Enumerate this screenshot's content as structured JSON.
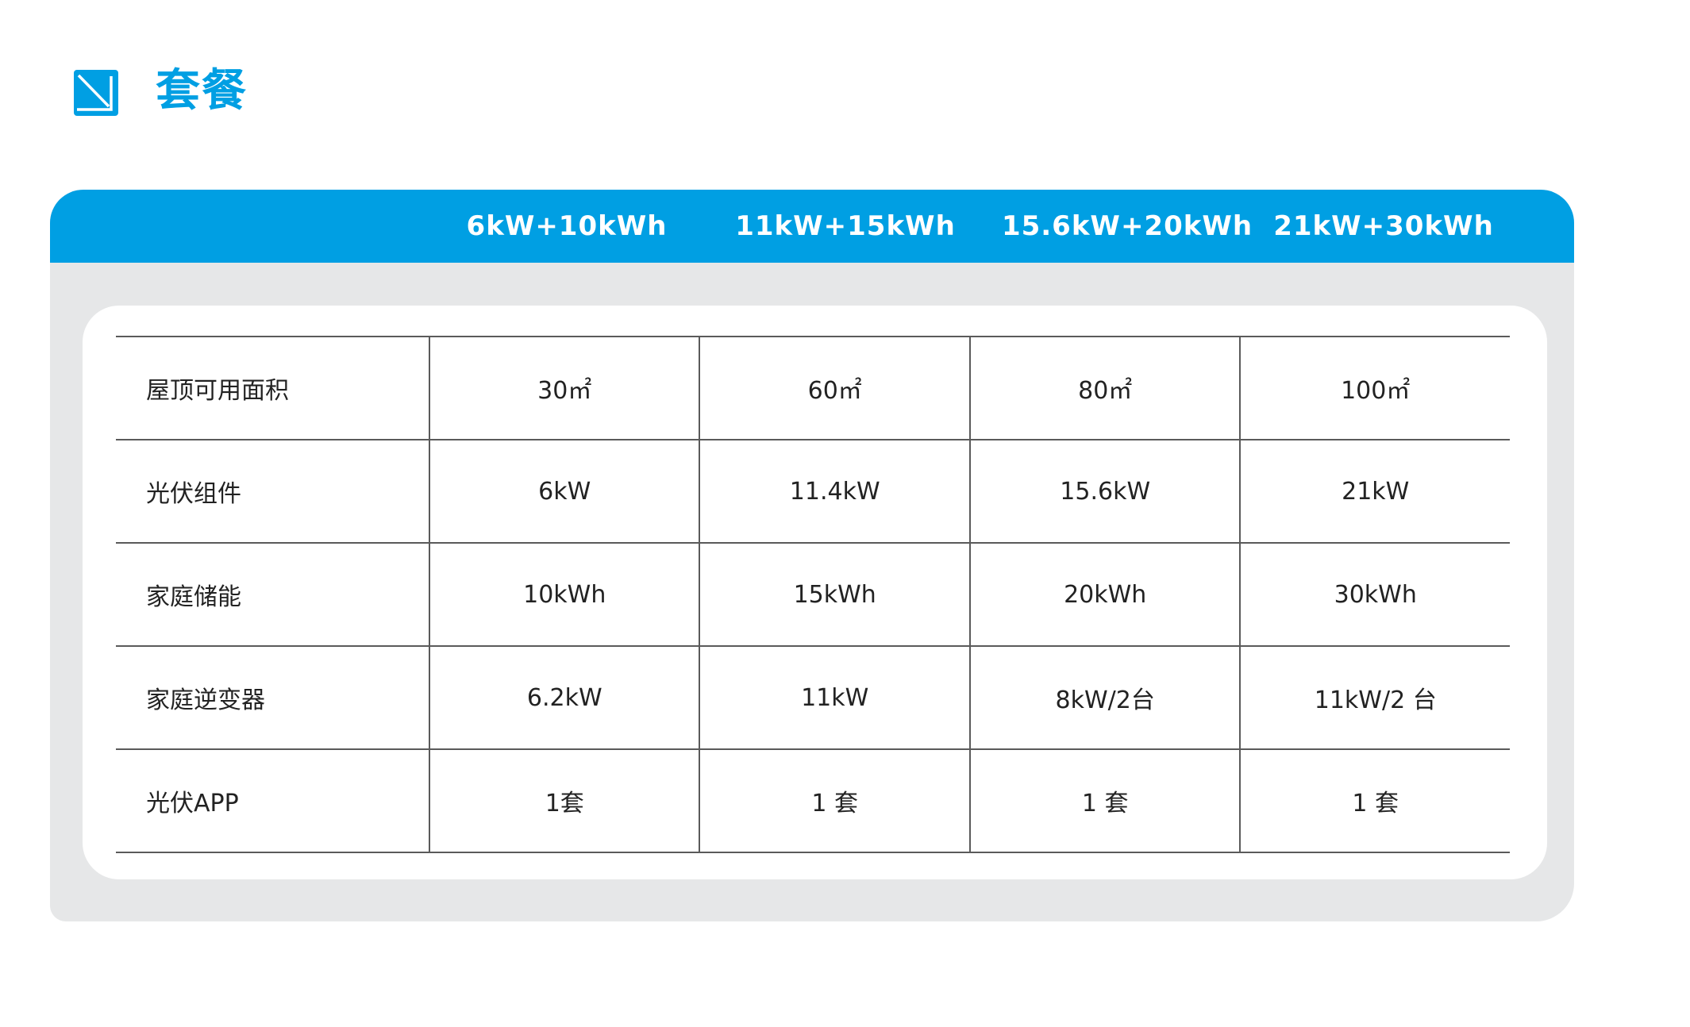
{
  "title": {
    "text": "套餐",
    "icon": "arrow-down-right-square-icon",
    "color": "#009fe3"
  },
  "table": {
    "header_color": "#009fe3",
    "columns": [
      "6kW+10kWh",
      "11kW+15kWh",
      "15.6kW+20kWh",
      "21kW+30kWh"
    ],
    "rows": [
      {
        "label": "屋顶可用面积",
        "values": [
          "30㎡",
          "60㎡",
          "80㎡",
          "100㎡"
        ]
      },
      {
        "label": "光伏组件",
        "values": [
          "6kW",
          "11.4kW",
          "15.6kW",
          "21kW"
        ]
      },
      {
        "label": "家庭储能",
        "values": [
          "10kWh",
          "15kWh",
          "20kWh",
          "30kWh"
        ]
      },
      {
        "label": "家庭逆变器",
        "values": [
          "6.2kW",
          "11kW",
          "8kW/2台",
          "11kW/2 台"
        ]
      },
      {
        "label": "光伏APP",
        "values": [
          "1套",
          "1 套",
          "1 套",
          "1 套"
        ]
      }
    ]
  }
}
